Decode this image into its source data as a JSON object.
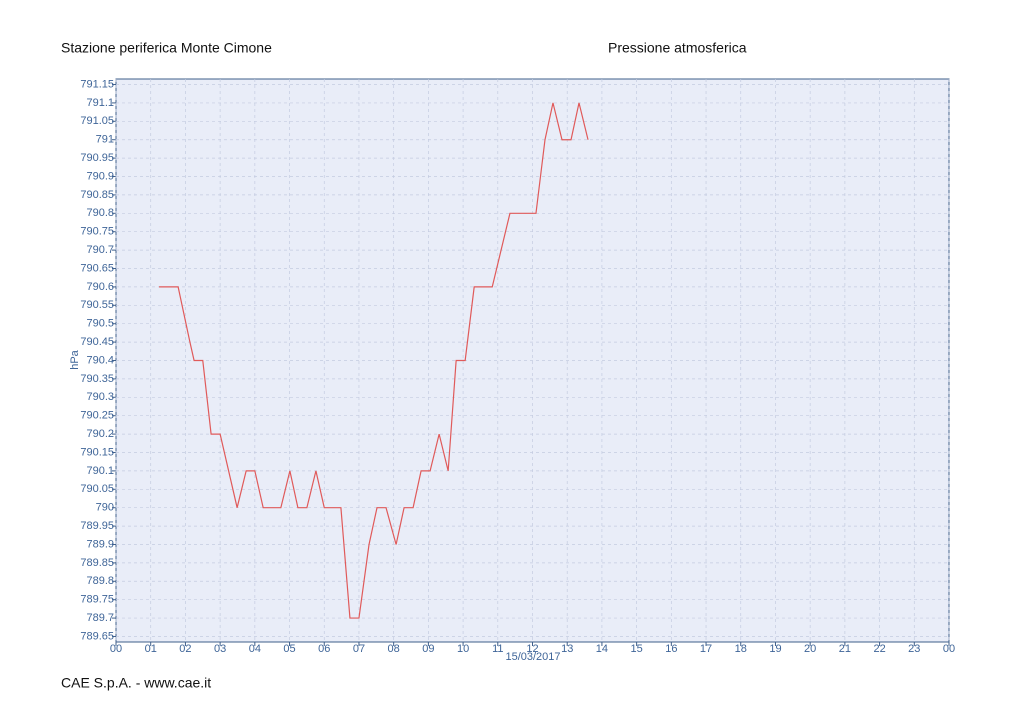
{
  "chart_data": {
    "type": "line",
    "title": "Stazione periferica Monte Cimone",
    "subtitle": "Pressione atmosferica",
    "footer": "CAE S.p.A. - www.cae.it",
    "x_label": "15/03/2017",
    "y_label": "hPa",
    "x": [
      1.24,
      1.67,
      1.79,
      2.13,
      2.25,
      2.5,
      2.74,
      3.0,
      3.49,
      3.75,
      4.0,
      4.24,
      4.5,
      4.75,
      5.01,
      5.24,
      5.5,
      5.76,
      6.0,
      6.48,
      6.74,
      7.0,
      7.29,
      7.52,
      7.78,
      8.07,
      8.3,
      8.56,
      8.79,
      9.05,
      9.31,
      9.57,
      9.8,
      10.06,
      10.32,
      10.84,
      11.35,
      12.1,
      12.36,
      12.59,
      12.85,
      13.11,
      13.34,
      13.6
    ],
    "series": [
      {
        "name": "hPa",
        "color": "#e05a5a",
        "values": [
          790.6,
          790.6,
          790.6,
          790.45,
          790.4,
          790.4,
          790.2,
          790.2,
          790.0,
          790.1,
          790.1,
          790.0,
          790.0,
          790.0,
          790.1,
          790.0,
          790.0,
          790.1,
          790.0,
          790.0,
          789.7,
          789.7,
          789.9,
          790.0,
          790.0,
          789.9,
          790.0,
          790.0,
          790.1,
          790.1,
          790.2,
          790.1,
          790.4,
          790.4,
          790.6,
          790.6,
          790.8,
          790.8,
          791.0,
          791.1,
          791.0,
          791.0,
          791.1,
          791.0
        ]
      }
    ],
    "xlim": [
      0,
      24
    ],
    "xticks": [
      {
        "value": 0,
        "label": "00"
      },
      {
        "value": 1,
        "label": "01"
      },
      {
        "value": 2,
        "label": "02"
      },
      {
        "value": 3,
        "label": "03"
      },
      {
        "value": 4,
        "label": "04"
      },
      {
        "value": 5,
        "label": "05"
      },
      {
        "value": 6,
        "label": "06"
      },
      {
        "value": 7,
        "label": "07"
      },
      {
        "value": 8,
        "label": "08"
      },
      {
        "value": 9,
        "label": "09"
      },
      10,
      11,
      12,
      13,
      14,
      15,
      16,
      17,
      18,
      19,
      20,
      21,
      22,
      23,
      {
        "value": 24,
        "label": "00"
      }
    ],
    "ylim": [
      789.635,
      791.165
    ],
    "yticks": [
      789.65,
      789.7,
      789.75,
      789.8,
      789.85,
      789.9,
      789.95,
      790,
      790.05,
      790.1,
      790.15,
      790.2,
      790.25,
      790.3,
      790.35,
      790.4,
      790.45,
      790.5,
      790.55,
      790.6,
      790.65,
      790.7,
      790.75,
      790.8,
      790.85,
      790.9,
      790.95,
      791,
      791.05,
      791.1,
      791.15
    ],
    "grid": true
  }
}
